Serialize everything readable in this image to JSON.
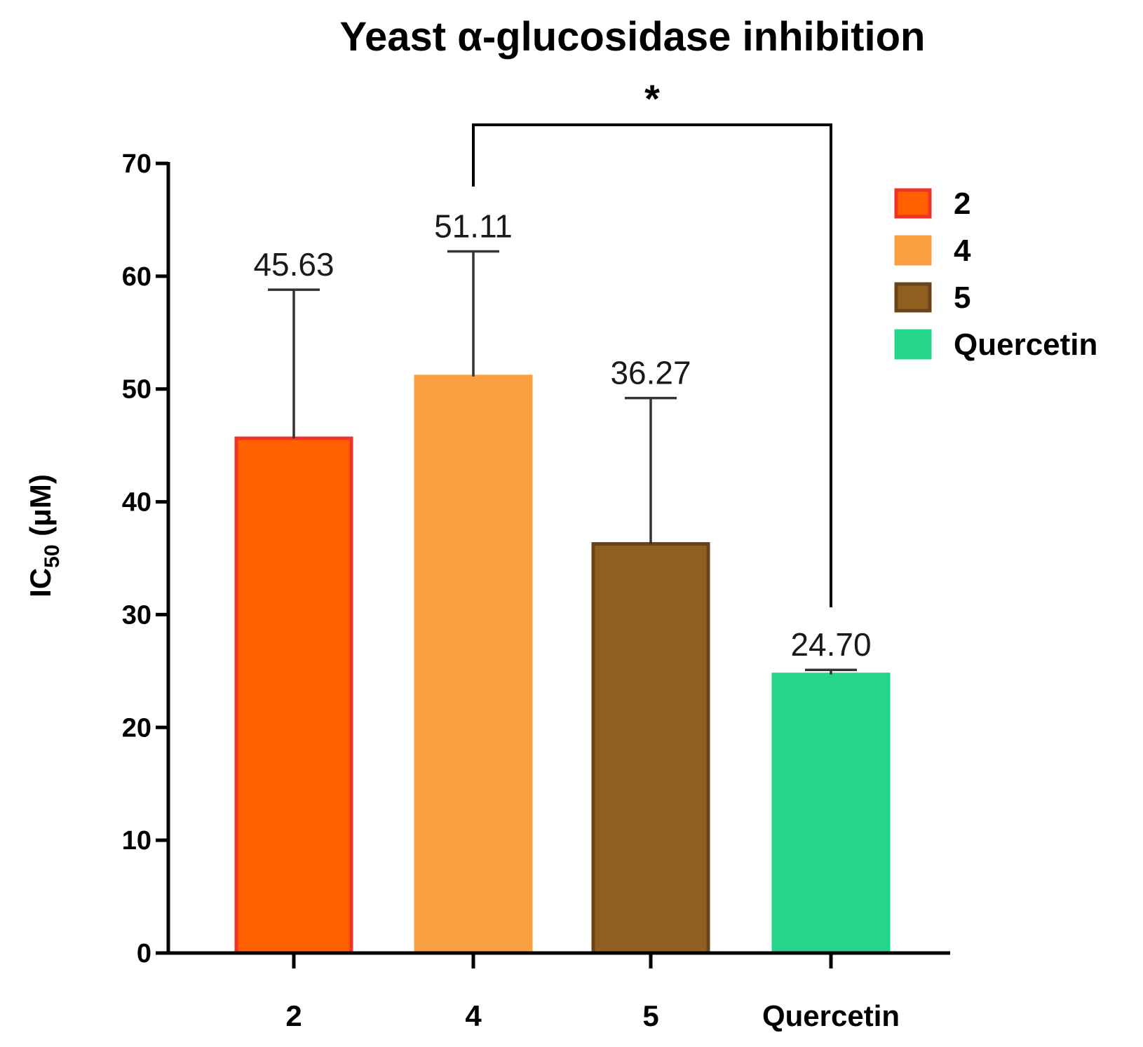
{
  "chart_data": {
    "type": "bar",
    "title": "Yeast α-glucosidase inhibition",
    "xlabel": "",
    "ylabel_main": "IC",
    "ylabel_sub": "50",
    "ylabel_unit": " (μM)",
    "ylim": [
      0,
      70
    ],
    "yticks": [
      0,
      10,
      20,
      30,
      40,
      50,
      60,
      70
    ],
    "categories": [
      "2",
      "4",
      "5",
      "Quercetin"
    ],
    "values": [
      45.63,
      51.11,
      36.27,
      24.7
    ],
    "value_labels": [
      "45.63",
      "51.11",
      "36.27",
      "24.70"
    ],
    "error_upper": [
      58.8,
      62.2,
      49.2,
      25.1
    ],
    "fill_colors": [
      "#ff6000",
      "#f9a040",
      "#916020",
      "#25d68a"
    ],
    "edge_colors": [
      "#ef3325",
      "#f9a040",
      "#6a4418",
      "#25d68a"
    ],
    "legend": [
      "2",
      "4",
      "5",
      "Quercetin"
    ],
    "legend_position": "top-right",
    "significance": {
      "from": "4",
      "to": "Quercetin",
      "label": "*"
    }
  }
}
